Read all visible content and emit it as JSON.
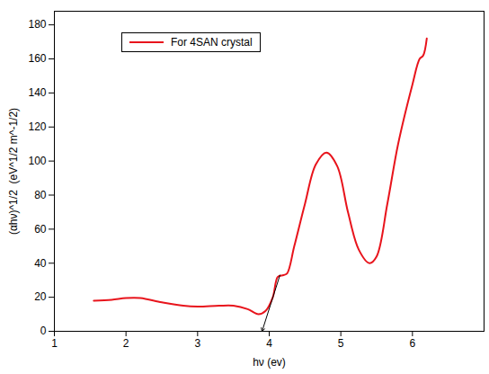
{
  "chart_data": {
    "type": "line",
    "x_label": "hν (ev)",
    "y_label": "(αhν)^1/2  (eV^1/2 m^-1/2)",
    "xlim": [
      1,
      7
    ],
    "ylim": [
      0,
      188
    ],
    "xticks": [
      1,
      2,
      3,
      4,
      5,
      6
    ],
    "yticks": [
      0,
      20,
      40,
      60,
      80,
      100,
      120,
      140,
      160,
      180
    ],
    "grid": false,
    "legend": "top-left",
    "series": [
      {
        "name": "For 4SAN crystal",
        "color": "#e8141c",
        "x": [
          1.55,
          1.8,
          2.0,
          2.2,
          2.5,
          2.8,
          3.0,
          3.3,
          3.5,
          3.7,
          3.85,
          3.95,
          4.05,
          4.12,
          4.2,
          4.25,
          4.35,
          4.5,
          4.65,
          4.8,
          4.95,
          5.1,
          5.25,
          5.4,
          5.5,
          5.65,
          5.8,
          6.0,
          6.1,
          6.15,
          6.2
        ],
        "values": [
          18,
          18.5,
          19.5,
          19.5,
          17,
          15,
          14.5,
          15,
          15,
          13,
          10,
          12,
          20,
          32,
          33,
          34,
          50,
          75,
          98,
          105,
          97,
          70,
          48,
          40,
          44,
          75,
          110,
          145,
          160,
          162,
          172
        ]
      }
    ],
    "extrapolation": {
      "x": [
        4.15,
        3.9
      ],
      "y": [
        33,
        0
      ]
    }
  }
}
